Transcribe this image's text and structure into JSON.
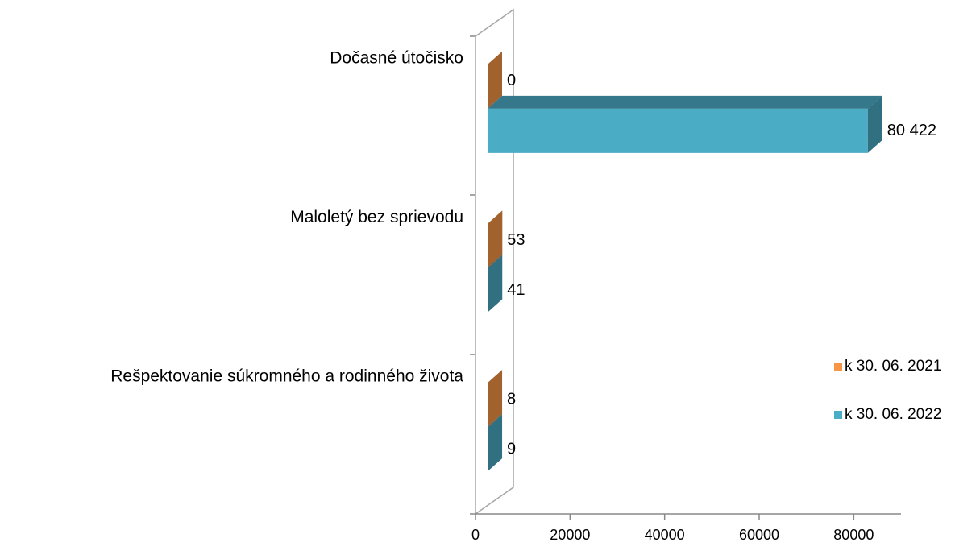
{
  "chart_data": {
    "type": "bar3d-horizontal",
    "categories": [
      "Dočasné útočisko",
      "Maloletý bez sprievodu",
      "Rešpektovanie súkromného a rodinného života"
    ],
    "series": [
      {
        "name": "k 30. 06. 2021",
        "color": "#f79646",
        "values": [
          0,
          53,
          8
        ]
      },
      {
        "name": "k 30. 06. 2022",
        "color": "#4bacc6",
        "values": [
          80422,
          41,
          9
        ],
        "value_labels": [
          "80 422",
          "41",
          "9"
        ]
      }
    ],
    "xlim": [
      0,
      90000
    ],
    "xticks": [
      0,
      20000,
      40000,
      60000,
      80000
    ]
  }
}
